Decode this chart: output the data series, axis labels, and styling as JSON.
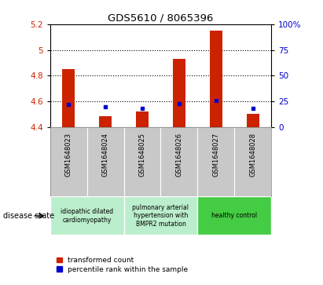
{
  "title": "GDS5610 / 8065396",
  "samples": [
    "GSM1648023",
    "GSM1648024",
    "GSM1648025",
    "GSM1648026",
    "GSM1648027",
    "GSM1648028"
  ],
  "transformed_count": [
    4.85,
    4.48,
    4.52,
    4.93,
    5.15,
    4.5
  ],
  "percentile_rank_values": [
    4.575,
    4.555,
    4.545,
    4.58,
    4.605,
    4.545
  ],
  "y_min": 4.4,
  "y_max": 5.2,
  "y_ticks": [
    4.4,
    4.6,
    4.8,
    5.0,
    5.2
  ],
  "y_tick_labels": [
    "4.4",
    "4.6",
    "4.8",
    "5",
    "5.2"
  ],
  "right_y_tick_percentiles": [
    0,
    25,
    50,
    75,
    100
  ],
  "right_y_tick_labels": [
    "0",
    "25",
    "50",
    "75",
    "100%"
  ],
  "bar_color": "#cc2200",
  "dot_color": "#0000cc",
  "background_plot": "#ffffff",
  "background_xaxis": "#c8c8c8",
  "group_colors": [
    "#bbeecc",
    "#bbeecc",
    "#44cc44"
  ],
  "group_labels": [
    "idiopathic dilated\ncardiomyopathy",
    "pulmonary arterial\nhypertension with\nBMPR2 mutation",
    "healthy control"
  ],
  "group_ranges": [
    [
      0,
      2
    ],
    [
      2,
      4
    ],
    [
      4,
      6
    ]
  ],
  "legend_red_label": "transformed count",
  "legend_blue_label": "percentile rank within the sample",
  "disease_state_label": "disease state",
  "grid_color": "#000000",
  "tick_label_color_left": "#cc2200",
  "tick_label_color_right": "#0000cc"
}
